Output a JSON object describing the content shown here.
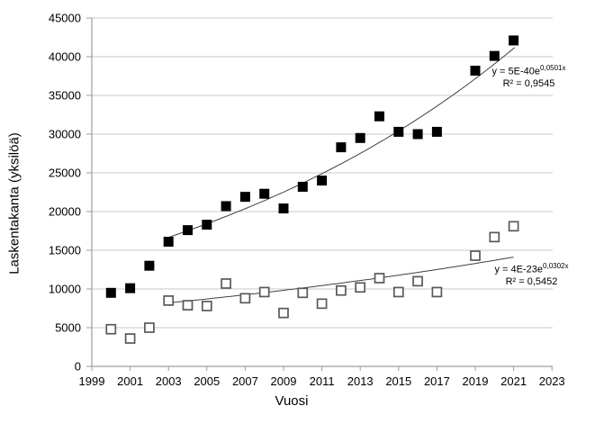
{
  "chart_data": {
    "type": "scatter",
    "title": "",
    "xlabel": "Vuosi",
    "ylabel": "Laskentakanta (yksilöä)",
    "xlim": [
      1999,
      2023
    ],
    "ylim": [
      0,
      45000
    ],
    "x_ticks": [
      1999,
      2001,
      2003,
      2005,
      2007,
      2009,
      2011,
      2013,
      2015,
      2017,
      2019,
      2021,
      2023
    ],
    "y_ticks": [
      0,
      5000,
      10000,
      15000,
      20000,
      25000,
      30000,
      35000,
      40000,
      45000
    ],
    "grid": "horizontal",
    "legend": "none",
    "x": [
      2000,
      2001,
      2002,
      2003,
      2004,
      2005,
      2006,
      2007,
      2008,
      2009,
      2010,
      2011,
      2012,
      2013,
      2014,
      2015,
      2016,
      2017,
      2019,
      2020,
      2021
    ],
    "series": [
      {
        "name": "filled-squares",
        "marker": "filled-square",
        "fill": "#000000",
        "values": [
          9500,
          10100,
          13000,
          16100,
          17600,
          18300,
          20700,
          21900,
          22300,
          20400,
          23200,
          24000,
          28300,
          29500,
          32300,
          30300,
          30000,
          30300,
          38200,
          40100,
          42100
        ],
        "trendline": {
          "type": "exponential",
          "equation_base": "y = 5E-40e",
          "equation_exponent": "0,0501x",
          "r2": "R² = 0,9545",
          "k": 0.0501,
          "anchor_year": 2005.4,
          "anchor_value": 18800,
          "year_range": [
            2002.8,
            2021.2
          ]
        }
      },
      {
        "name": "open-squares",
        "marker": "open-square",
        "fill": "#ffffff",
        "stroke": "#595959",
        "values": [
          4800,
          3600,
          5000,
          8500,
          7900,
          7800,
          10700,
          8800,
          9600,
          6900,
          9500,
          8100,
          9800,
          10200,
          11400,
          9600,
          11000,
          9600,
          14300,
          16700,
          18100
        ],
        "trendline": {
          "type": "exponential",
          "equation_base": "y = 4E-23e",
          "equation_exponent": "0,0302x",
          "r2": "R² = 0,5452",
          "k": 0.0302,
          "anchor_year": 2003,
          "anchor_value": 8200,
          "year_range": [
            2003,
            2021
          ]
        }
      }
    ]
  },
  "colors": {
    "background": "#ffffff",
    "gridline": "#c9c9c9",
    "axis": "#9d9d9d",
    "text": "#000000",
    "trendline": "#404040"
  }
}
